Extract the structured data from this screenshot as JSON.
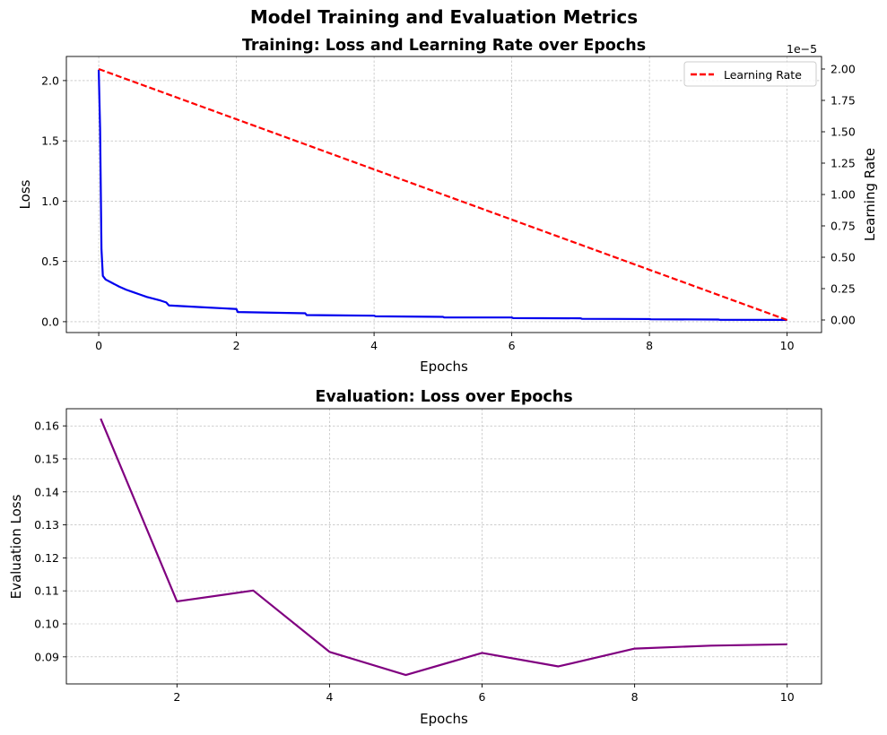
{
  "figure": {
    "suptitle": "Model Training and Evaluation Metrics"
  },
  "chart_data": [
    {
      "type": "line",
      "title": "Training: Loss and Learning Rate over Epochs",
      "xlabel": "Epochs",
      "ylabel": "Loss",
      "y2label": "Learning Rate",
      "y2_offset_text": "1e−5",
      "xlim": [
        -0.47,
        10.5
      ],
      "ylim": [
        -0.09,
        2.2
      ],
      "y2lim": [
        -0.1,
        2.1
      ],
      "xticks": [
        0,
        2,
        4,
        6,
        8,
        10
      ],
      "yticks": [
        "0.0",
        "0.5",
        "1.0",
        "1.5",
        "2.0"
      ],
      "y2ticks": [
        "0.00",
        "0.25",
        "0.50",
        "0.75",
        "1.00",
        "1.25",
        "1.50",
        "1.75",
        "2.00"
      ],
      "grid": true,
      "legend": {
        "position": "top-right",
        "entries": [
          "Learning Rate"
        ]
      },
      "series": [
        {
          "axis": "left",
          "color": "#0000ee",
          "style": "solid",
          "x": [
            0.0,
            0.02,
            0.04,
            0.06,
            0.1,
            0.2,
            0.3,
            0.4,
            0.5,
            0.6,
            0.7,
            0.8,
            0.9,
            0.98,
            1.02,
            1.5,
            2.0,
            2.02,
            3.0,
            3.02,
            4.0,
            4.02,
            5.0,
            5.02,
            6.0,
            6.02,
            7.0,
            7.02,
            8.0,
            8.02,
            9.0,
            9.02,
            10.0
          ],
          "y": [
            2.09,
            1.6,
            0.6,
            0.38,
            0.35,
            0.32,
            0.29,
            0.265,
            0.245,
            0.225,
            0.205,
            0.19,
            0.175,
            0.16,
            0.135,
            0.12,
            0.105,
            0.08,
            0.07,
            0.055,
            0.05,
            0.045,
            0.04,
            0.035,
            0.035,
            0.03,
            0.028,
            0.024,
            0.022,
            0.02,
            0.018,
            0.016,
            0.015
          ]
        },
        {
          "name": "Learning Rate",
          "axis": "right",
          "color": "#ff0000",
          "style": "dashed",
          "x": [
            0,
            10
          ],
          "y": [
            2.0,
            0.0
          ]
        }
      ]
    },
    {
      "type": "line",
      "title": "Evaluation: Loss over Epochs",
      "xlabel": "Epochs",
      "ylabel": "Evaluation Loss",
      "xlim": [
        0.55,
        10.45
      ],
      "ylim": [
        0.0818,
        0.1652
      ],
      "xticks": [
        2,
        4,
        6,
        8,
        10
      ],
      "yticks": [
        "0.09",
        "0.10",
        "0.11",
        "0.12",
        "0.13",
        "0.14",
        "0.15",
        "0.16"
      ],
      "grid": true,
      "series": [
        {
          "color": "#800080",
          "style": "solid",
          "x": [
            1,
            2,
            3,
            4,
            5,
            6,
            7,
            8,
            9,
            10
          ],
          "y": [
            0.1622,
            0.1068,
            0.1101,
            0.0915,
            0.0845,
            0.0912,
            0.0871,
            0.0925,
            0.0934,
            0.0938
          ]
        }
      ]
    }
  ]
}
